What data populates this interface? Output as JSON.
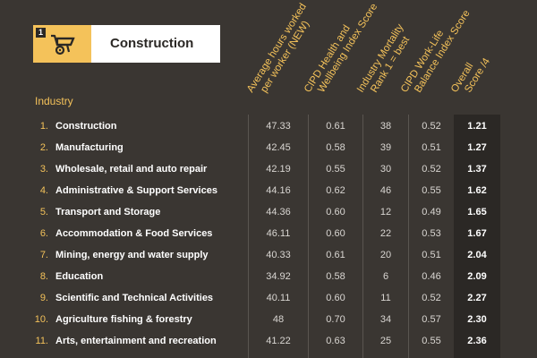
{
  "badge": {
    "number": "1",
    "title": "Construction"
  },
  "table": {
    "industry_header": "Industry",
    "columns": [
      {
        "line1": "Average hours worked",
        "line2": "per worker (NEW)"
      },
      {
        "line1": "CIPD Health and",
        "line2": "Wellbeing Index Score"
      },
      {
        "line1": "Industry Mortality",
        "line2": "Rank 1 = best"
      },
      {
        "line1": "CIPD Work-Life",
        "line2": "Balance Index Score"
      },
      {
        "line1": "Overall",
        "line2": "Score /4"
      }
    ],
    "rows": [
      {
        "rank": "1.",
        "name": "Construction",
        "hours": "47.33",
        "health": "0.61",
        "mortality": "38",
        "balance": "0.52",
        "overall": "1.21"
      },
      {
        "rank": "2.",
        "name": "Manufacturing",
        "hours": "42.45",
        "health": "0.58",
        "mortality": "39",
        "balance": "0.51",
        "overall": "1.27"
      },
      {
        "rank": "3.",
        "name": "Wholesale, retail and auto repair",
        "hours": "42.19",
        "health": "0.55",
        "mortality": "30",
        "balance": "0.52",
        "overall": "1.37"
      },
      {
        "rank": "4.",
        "name": "Administrative & Support Services",
        "hours": "44.16",
        "health": "0.62",
        "mortality": "46",
        "balance": "0.55",
        "overall": "1.62"
      },
      {
        "rank": "5.",
        "name": "Transport and Storage",
        "hours": "44.36",
        "health": "0.60",
        "mortality": "12",
        "balance": "0.49",
        "overall": "1.65"
      },
      {
        "rank": "6.",
        "name": "Accommodation & Food Services",
        "hours": "46.11",
        "health": "0.60",
        "mortality": "22",
        "balance": "0.53",
        "overall": "1.67"
      },
      {
        "rank": "7.",
        "name": "Mining, energy and water supply",
        "hours": "40.33",
        "health": "0.61",
        "mortality": "20",
        "balance": "0.51",
        "overall": "2.04"
      },
      {
        "rank": "8.",
        "name": "Education",
        "hours": "34.92",
        "health": "0.58",
        "mortality": "6",
        "balance": "0.46",
        "overall": "2.09"
      },
      {
        "rank": "9.",
        "name": "Scientific and Technical Activities",
        "hours": "40.11",
        "health": "0.60",
        "mortality": "11",
        "balance": "0.52",
        "overall": "2.27"
      },
      {
        "rank": "10.",
        "name": "Agriculture fishing & forestry",
        "hours": "48",
        "health": "0.70",
        "mortality": "34",
        "balance": "0.57",
        "overall": "2.30"
      },
      {
        "rank": "11.",
        "name": "Arts, entertainment and recreation",
        "hours": "41.22",
        "health": "0.63",
        "mortality": "25",
        "balance": "0.55",
        "overall": "2.36"
      }
    ]
  }
}
